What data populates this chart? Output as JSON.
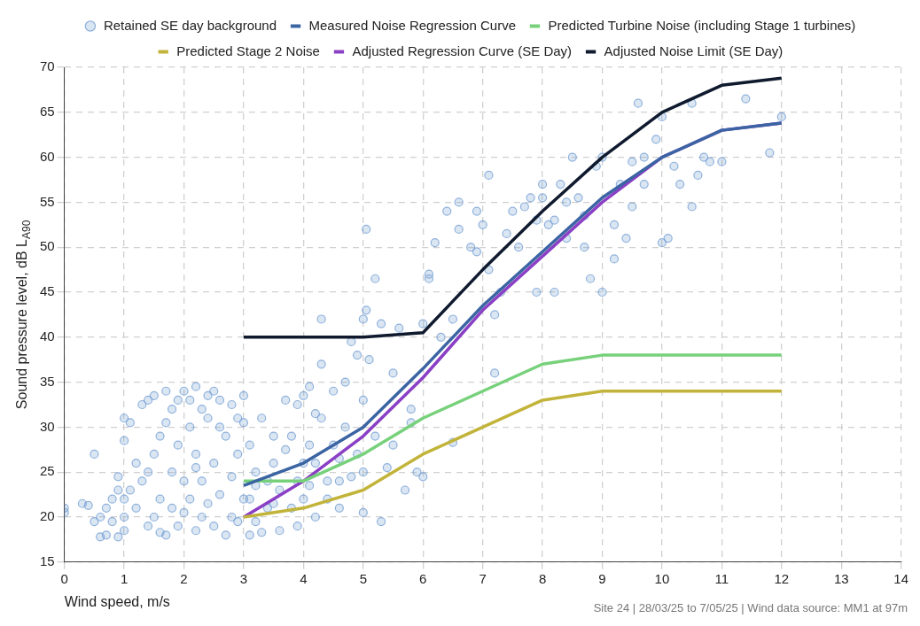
{
  "chart_data": {
    "type": "line",
    "xlabel": "Wind speed, m/s",
    "ylabel": "Sound pressure level, dB L$_{A90}$",
    "annotations": [
      "Site 24 | 28/03/25 to 7/05/25 | Wind data source: MM1 at 97m"
    ],
    "xlim": [
      0,
      14
    ],
    "xticks": [
      0,
      1,
      2,
      3,
      4,
      5,
      6,
      7,
      8,
      9,
      10,
      11,
      12,
      13,
      14
    ],
    "ylim": [
      15,
      70
    ],
    "yticks": [
      15,
      20,
      25,
      30,
      35,
      40,
      45,
      50,
      55,
      60,
      65,
      70
    ],
    "grid": true,
    "legend": "top",
    "series": [
      {
        "name": "Retained SE day background",
        "type": "scatter",
        "marker": "circle",
        "color": "#6f9bd1",
        "x": [
          0,
          0,
          0.3,
          0.4,
          0.5,
          0.5,
          0.6,
          0.6,
          0.7,
          0.7,
          0.8,
          0.8,
          0.9,
          0.9,
          1,
          1,
          1,
          1,
          1,
          0.9,
          1.1,
          1.1,
          1.2,
          1.2,
          1.3,
          1.3,
          1.4,
          1.4,
          1.5,
          1.5,
          1.5,
          1.6,
          1.6,
          1.7,
          1.7,
          1.7,
          1.8,
          1.8,
          1.8,
          1.9,
          1.9,
          1.9,
          2,
          2,
          2,
          1.6,
          1.4,
          2.1,
          2.1,
          2.1,
          2.2,
          2.2,
          2.2,
          2.3,
          2.3,
          2.3,
          2.4,
          2.4,
          2.4,
          2.5,
          2.5,
          2.5,
          2.6,
          2.6,
          2.7,
          2.7,
          2.8,
          2.8,
          2.8,
          2.9,
          2.9,
          2.9,
          3,
          3,
          3,
          2.6,
          2.2,
          3.1,
          3.1,
          3.1,
          3.2,
          3.2,
          3.3,
          3.3,
          3.4,
          3.4,
          3.5,
          3.5,
          3.6,
          3.6,
          3.7,
          3.7,
          3.8,
          3.8,
          3.9,
          3.9,
          4,
          4,
          4,
          3.5,
          3.2,
          3.9,
          4.1,
          4.1,
          4.1,
          4.2,
          4.2,
          4.3,
          4.3,
          4.3,
          4.4,
          4.4,
          4.5,
          4.5,
          4.6,
          4.6,
          4.7,
          4.7,
          4.8,
          4.8,
          4.9,
          4.9,
          5,
          5,
          5,
          5,
          4.6,
          4.2,
          5.05,
          5.05,
          5.1,
          5.2,
          5.2,
          5.3,
          5.3,
          5.4,
          5.5,
          5.5,
          5.6,
          5.7,
          5.8,
          5.9,
          6,
          6,
          5.8,
          6.1,
          6.1,
          6.2,
          6.3,
          6.4,
          6.5,
          6.5,
          6.6,
          6.6,
          6.8,
          6.9,
          6.9,
          7,
          7.1,
          7.1,
          7.2,
          7.2,
          7.3,
          7.4,
          7.5,
          7.6,
          7.7,
          7.8,
          7.9,
          7.9,
          8,
          8,
          8.1,
          8.2,
          8.2,
          8.3,
          8.4,
          8.4,
          8.5,
          8.6,
          8.7,
          8.7,
          8.8,
          8.9,
          9,
          9,
          9.2,
          9.3,
          9.4,
          9.5,
          9.6,
          9.7,
          9.7,
          9.9,
          10,
          10,
          10.1,
          10.2,
          10.3,
          10.5,
          10.6,
          10.7,
          10.8,
          11,
          11.4,
          11.8,
          12,
          9.2,
          9.5,
          10.5
        ],
        "values": [
          20.5,
          21,
          21.5,
          21.3,
          19.5,
          27,
          20,
          17.8,
          18,
          21,
          22,
          19.5,
          23,
          24.5,
          18.5,
          20,
          22,
          28.5,
          31,
          17.8,
          23,
          30.5,
          21,
          26,
          32.5,
          24,
          33,
          19,
          33.5,
          20,
          27,
          29,
          22,
          34,
          30.5,
          18,
          32,
          25,
          21,
          33,
          28,
          19,
          34,
          24,
          20.5,
          18.3,
          25,
          33,
          30,
          22,
          34.5,
          27,
          18.5,
          32,
          24,
          20,
          33.5,
          31,
          21.5,
          34,
          26,
          19,
          33,
          22.5,
          29,
          18,
          32.5,
          24.5,
          20,
          31,
          27,
          19.5,
          33.5,
          30.5,
          22,
          30,
          25.5,
          18,
          22,
          28,
          19.5,
          25,
          31,
          18.3,
          24,
          21,
          29,
          26,
          18.5,
          23,
          33,
          27.5,
          21,
          29,
          24,
          19,
          33.5,
          26,
          22,
          21.5,
          23.5,
          32.5,
          34.5,
          28,
          23.5,
          20,
          26,
          37,
          31,
          42,
          24,
          22,
          34,
          28,
          26.5,
          21,
          35,
          30,
          24.5,
          39.5,
          38,
          27,
          42,
          33,
          25,
          20.5,
          24,
          31.5,
          52,
          43,
          37.5,
          46.5,
          29,
          41.5,
          19.5,
          25.5,
          36,
          28,
          41,
          23,
          30.5,
          25,
          41.5,
          24.5,
          32,
          46.5,
          47,
          50.5,
          40,
          54,
          28.3,
          42,
          55,
          52,
          50,
          54,
          49.5,
          52.5,
          47.5,
          58,
          36,
          42.5,
          45,
          51.5,
          54,
          50,
          54.5,
          55.5,
          45,
          53,
          57,
          55.5,
          52.5,
          45,
          53,
          57,
          51,
          55,
          60,
          55.5,
          50,
          53.5,
          46.5,
          59,
          45,
          60,
          52.5,
          57,
          51,
          54.5,
          66,
          57,
          60,
          62,
          50.5,
          64.5,
          51,
          59,
          57,
          54.5,
          58,
          60,
          59.5,
          59.5,
          66.5,
          60.5,
          64.5,
          48.7,
          59.5,
          66
        ]
      },
      {
        "name": "Measured Noise Regression Curve",
        "marker": "none",
        "color": "#3b64a3",
        "x": [
          3,
          4,
          5,
          6,
          7,
          8,
          9,
          10,
          11,
          12
        ],
        "values": [
          23.5,
          26,
          30,
          36.5,
          43.5,
          49.5,
          55.5,
          60,
          63,
          63.8
        ]
      },
      {
        "name": "Predicted Turbine Noise (including Stage 1 turbines)",
        "marker": "none",
        "color": "#77d17b",
        "x": [
          3,
          4,
          5,
          6,
          7,
          8,
          9,
          10,
          11,
          12
        ],
        "values": [
          24,
          24,
          27,
          31,
          34,
          37,
          38,
          38,
          38,
          38
        ]
      },
      {
        "name": "Predicted Stage 2 Noise",
        "marker": "none",
        "color": "#c2b43a",
        "x": [
          3,
          4,
          5,
          6,
          7,
          8,
          9,
          10,
          11,
          12
        ],
        "values": [
          20,
          21,
          23,
          27,
          30,
          33,
          34,
          34,
          34,
          34
        ]
      },
      {
        "name": "Adjusted Regression Curve (SE Day)",
        "marker": "none",
        "color": "#8a3fc4",
        "x": [
          3,
          4,
          5,
          6,
          7,
          8,
          9,
          10,
          11,
          12
        ],
        "values": [
          20,
          24,
          29,
          35.5,
          43,
          49,
          55,
          60,
          63,
          63.8
        ]
      },
      {
        "name": "Adjusted Noise Limit (SE Day)",
        "marker": "none",
        "color": "#0f1a2e",
        "x": [
          3,
          4,
          5,
          6,
          7,
          8,
          9,
          10,
          11,
          12
        ],
        "values": [
          40,
          40,
          40,
          40.5,
          47.5,
          54,
          60,
          65,
          68,
          68.8
        ]
      }
    ]
  }
}
